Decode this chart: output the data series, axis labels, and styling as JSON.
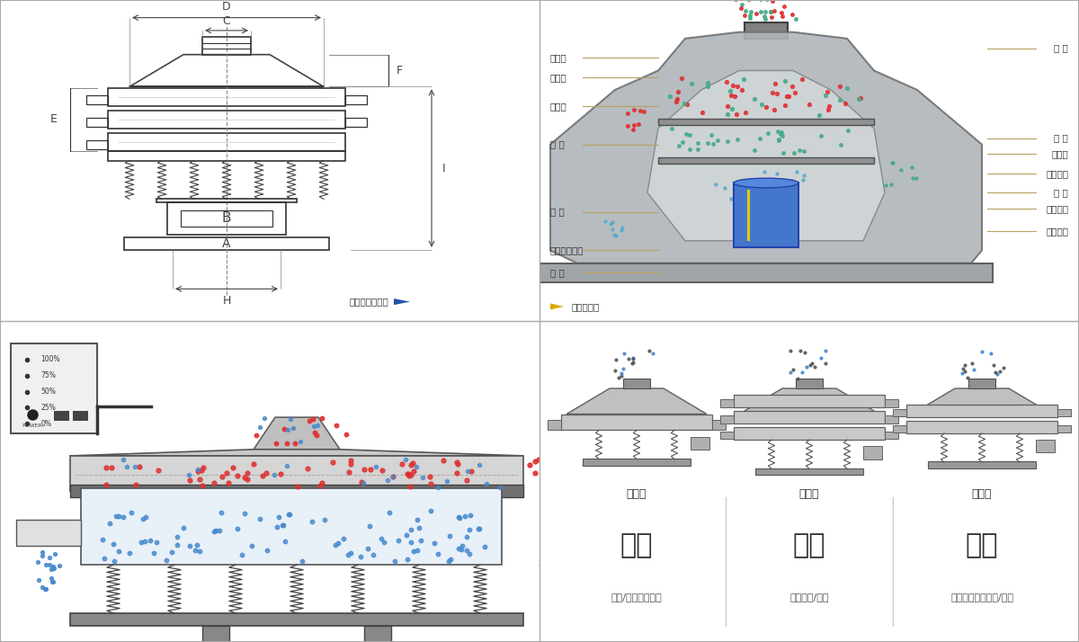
{
  "bg_color": "#ffffff",
  "border_color": "#cccccc",
  "panel_bg": "#ffffff",
  "drawing_color": "#444444",
  "label_color": "#333333",
  "title_font_size": 9,
  "label_font_size": 8,
  "small_font_size": 7,
  "left_labels": [
    "进料口",
    "防尘盖",
    "出料口",
    "束 环",
    "弹 簧",
    "运输固定螺栓",
    "机 座"
  ],
  "right_labels": [
    "筛 网",
    "网 架",
    "加重块",
    "上部重锤",
    "筛 盘",
    "振动电机",
    "下部重锤"
  ],
  "dim_labels": [
    "D",
    "C",
    "F",
    "E",
    "B",
    "A",
    "H",
    "I"
  ],
  "bottom_labels": [
    "单层式",
    "三层式",
    "双层式"
  ],
  "bottom_titles": [
    "分级",
    "过滤",
    "除杂"
  ],
  "bottom_descs": [
    "颗粒/粉末准确分级",
    "去除异物/结块",
    "去除液体中的颗粒/异物"
  ],
  "nav_left": "外形尺寸示意图",
  "nav_right": "结构示意图",
  "red_color": "#e03030",
  "blue_color": "#4488cc",
  "green_color": "#44aa88",
  "cyan_color": "#55aacc",
  "yellow_color": "#ddcc00",
  "silver_color": "#c8c8c8",
  "steel_color": "#a0a8b0",
  "dark_color": "#303030"
}
